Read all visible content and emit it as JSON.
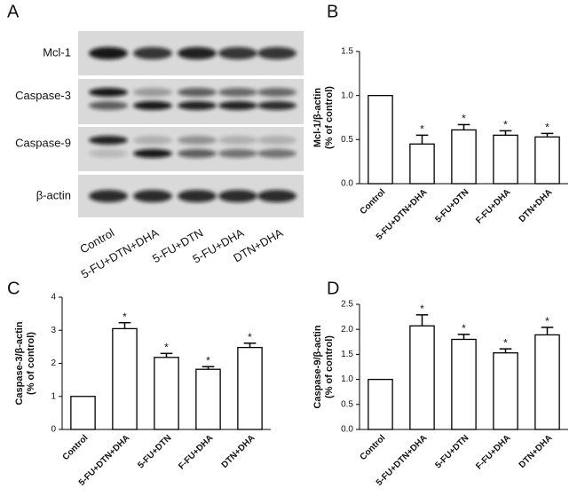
{
  "blot": {
    "panel_label": "A",
    "rows": [
      "Mcl-1",
      "Caspase-3",
      "Caspase-9",
      "β-actin"
    ],
    "lanes": [
      "Control",
      "5-FU+DTN+DHA",
      "5-FU+DTN",
      "5-FU+DHA",
      "DTN+DHA"
    ]
  },
  "chart_data": [
    {
      "type": "bar",
      "panel_label": "B",
      "ylabel": [
        "Mcl-1/β-actin",
        "(% of control)"
      ],
      "categories": [
        "Control",
        "5-FU+DTN+DHA",
        "5-FU+DTN",
        "F-FU+DHA",
        "DTN+DHA"
      ],
      "values": [
        1.0,
        0.45,
        0.61,
        0.55,
        0.53
      ],
      "errors": [
        0,
        0.1,
        0.06,
        0.05,
        0.04
      ],
      "significance": [
        null,
        "*",
        "*",
        "*",
        "*"
      ],
      "color": "#ffffff",
      "ylim": [
        0,
        1.5
      ],
      "yticks": [
        {
          "value": 0,
          "label": "0.0"
        },
        {
          "value": 0.5,
          "label": "0.5"
        },
        {
          "value": 1,
          "label": "1.0"
        },
        {
          "value": 1.5,
          "label": "1.5"
        }
      ]
    },
    {
      "type": "bar",
      "panel_label": "C",
      "ylabel": [
        "Caspase-3/β-actin",
        "(% of control)"
      ],
      "categories": [
        "Control",
        "5-FU+DTN+DHA",
        "5-FU+DTN",
        "F-FU+DHA",
        "DTN+DHA"
      ],
      "values": [
        1.0,
        3.05,
        2.18,
        1.82,
        2.48
      ],
      "errors": [
        0,
        0.18,
        0.12,
        0.08,
        0.13
      ],
      "significance": [
        null,
        "*",
        "*",
        "*",
        "*"
      ],
      "color": "#ffffff",
      "ylim": [
        0,
        4
      ],
      "yticks": [
        0,
        1,
        2,
        3,
        4
      ]
    },
    {
      "type": "bar",
      "panel_label": "D",
      "ylabel": [
        "Caspase-9/β-actin",
        "(% of control)"
      ],
      "categories": [
        "Control",
        "5-FU+DTN+DHA",
        "5-FU+DTN",
        "F-FU+DHA",
        "DTN+DHA"
      ],
      "values": [
        1.0,
        2.07,
        1.8,
        1.53,
        1.89
      ],
      "errors": [
        0,
        0.22,
        0.1,
        0.08,
        0.15
      ],
      "significance": [
        null,
        "*",
        "*",
        "*",
        "*"
      ],
      "color": "#ffffff",
      "ylim": [
        0,
        2.5
      ],
      "yticks": [
        {
          "value": 0,
          "label": "0.0"
        },
        {
          "value": 0.5,
          "label": "0.5"
        },
        {
          "value": 1,
          "label": "1.0"
        },
        {
          "value": 1.5,
          "label": "1.5"
        },
        {
          "value": 2,
          "label": "2.0"
        },
        {
          "value": 2.5,
          "label": "2.5"
        }
      ]
    }
  ]
}
